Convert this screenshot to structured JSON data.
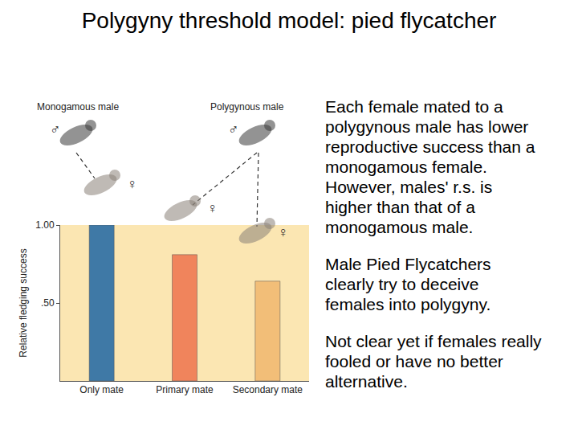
{
  "chart_data": {
    "type": "bar",
    "categories": [
      "Only mate",
      "Primary mate",
      "Secondary mate"
    ],
    "values": [
      1.0,
      0.81,
      0.64
    ],
    "colors": [
      "#3f79a6",
      "#f0845c",
      "#f2be78"
    ],
    "ylabel": "Relative fledging success",
    "ylim": [
      0,
      1.0
    ],
    "yticks": [
      {
        "value": 0.5,
        "label": ".50"
      },
      {
        "value": 1.0,
        "label": "1.00"
      }
    ],
    "grid": false
  },
  "slide": {
    "title": "Polygyny threshold model: pied flycatcher",
    "paragraphs": [
      [
        "Each female mated to a",
        "polygynous male has lower",
        "reproductive success than a",
        "monogamous female.",
        "However, males' r.s. is",
        "higher than that of a",
        "monogamous male."
      ],
      [
        "Male Pied Flycatchers",
        "clearly try to deceive",
        "females into polygyny."
      ],
      [
        "Not clear yet if females really",
        "fooled or have no better",
        "alternative."
      ]
    ],
    "figure_labels": [
      "Monogamous male",
      "Polygynous male"
    ],
    "symbols": [
      "♂",
      "♀",
      "♂",
      "♀",
      "♀"
    ]
  }
}
